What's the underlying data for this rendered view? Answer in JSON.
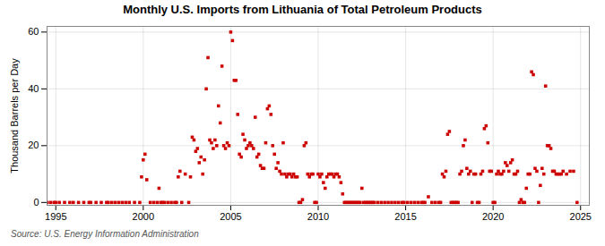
{
  "chart_data": {
    "type": "scatter",
    "title": "Monthly U.S. Imports from Lithuania of Total Petroleum Products",
    "ylabel": "Thousand Barrels per Day",
    "source": "Source: U.S. Energy Information Administration",
    "color": "#cc0000",
    "marker": "square",
    "grid": true,
    "xlim": [
      1994.5,
      2025.5
    ],
    "ylim": [
      -1,
      62
    ],
    "xticks": [
      1995,
      2000,
      2005,
      2010,
      2015,
      2020,
      2025
    ],
    "yticks": [
      0,
      20,
      40,
      60
    ],
    "x": [
      1994.5,
      1994.7,
      1994.9,
      1995.0,
      1995.2,
      1995.5,
      1995.8,
      1996.0,
      1996.3,
      1996.6,
      1996.9,
      1997.0,
      1997.3,
      1997.6,
      1997.9,
      1998.0,
      1998.2,
      1998.4,
      1998.6,
      1998.8,
      1999.0,
      1999.2,
      1999.5,
      1999.8,
      1999.9,
      2000.0,
      2000.1,
      2000.2,
      2000.4,
      2000.6,
      2000.8,
      2000.9,
      2001.0,
      2001.1,
      2001.2,
      2001.4,
      2001.6,
      2001.8,
      2001.9,
      2002.0,
      2002.1,
      2002.2,
      2002.4,
      2002.6,
      2002.7,
      2002.8,
      2002.9,
      2003.0,
      2003.1,
      2003.2,
      2003.3,
      2003.4,
      2003.5,
      2003.6,
      2003.7,
      2003.8,
      2003.9,
      2004.0,
      2004.1,
      2004.2,
      2004.3,
      2004.4,
      2004.5,
      2004.6,
      2004.7,
      2004.8,
      2004.9,
      2005.0,
      2005.1,
      2005.2,
      2005.3,
      2005.4,
      2005.5,
      2005.6,
      2005.7,
      2005.8,
      2005.9,
      2006.0,
      2006.1,
      2006.2,
      2006.3,
      2006.4,
      2006.5,
      2006.6,
      2006.7,
      2006.8,
      2006.9,
      2007.0,
      2007.1,
      2007.2,
      2007.3,
      2007.4,
      2007.5,
      2007.6,
      2007.7,
      2007.8,
      2007.9,
      2008.0,
      2008.1,
      2008.2,
      2008.3,
      2008.4,
      2008.5,
      2008.6,
      2008.7,
      2008.8,
      2008.9,
      2009.0,
      2009.1,
      2009.2,
      2009.3,
      2009.4,
      2009.5,
      2009.6,
      2009.7,
      2009.8,
      2009.9,
      2010.0,
      2010.1,
      2010.2,
      2010.3,
      2010.4,
      2010.5,
      2010.6,
      2010.7,
      2010.8,
      2010.9,
      2011.0,
      2011.1,
      2011.2,
      2011.3,
      2011.4,
      2011.5,
      2011.6,
      2011.7,
      2011.8,
      2011.9,
      2012.0,
      2012.1,
      2012.2,
      2012.3,
      2012.4,
      2012.5,
      2012.6,
      2012.7,
      2012.8,
      2012.9,
      2013.0,
      2013.1,
      2013.2,
      2013.4,
      2013.6,
      2013.8,
      2014.0,
      2014.2,
      2014.4,
      2014.6,
      2014.8,
      2014.9,
      2015.1,
      2015.3,
      2015.5,
      2015.7,
      2015.9,
      2016.0,
      2016.1,
      2016.3,
      2016.5,
      2016.7,
      2016.9,
      2017.0,
      2017.1,
      2017.2,
      2017.3,
      2017.4,
      2017.5,
      2017.6,
      2017.7,
      2017.8,
      2017.9,
      2018.0,
      2018.1,
      2018.2,
      2018.3,
      2018.4,
      2018.5,
      2018.6,
      2018.7,
      2018.8,
      2018.9,
      2019.0,
      2019.1,
      2019.2,
      2019.3,
      2019.4,
      2019.5,
      2019.6,
      2019.7,
      2019.8,
      2019.9,
      2020.0,
      2020.1,
      2020.2,
      2020.3,
      2020.4,
      2020.5,
      2020.6,
      2020.7,
      2020.8,
      2020.9,
      2021.0,
      2021.1,
      2021.2,
      2021.3,
      2021.4,
      2021.5,
      2021.6,
      2021.7,
      2021.8,
      2021.9,
      2022.0,
      2022.1,
      2022.2,
      2022.3,
      2022.4,
      2022.5,
      2022.6,
      2022.7,
      2022.8,
      2022.9,
      2023.0,
      2023.1,
      2023.2,
      2023.3,
      2023.4,
      2023.5,
      2023.6,
      2023.7,
      2023.8,
      2023.9,
      2024.0,
      2024.2,
      2024.4,
      2024.6,
      2024.8
    ],
    "values": [
      0,
      0,
      0,
      0,
      0,
      0,
      0,
      0,
      0,
      0,
      0,
      0,
      0,
      0,
      0,
      0,
      0,
      0,
      0,
      0,
      0,
      0,
      0,
      0,
      9,
      15,
      17,
      8,
      0,
      0,
      0,
      5,
      0,
      0,
      0,
      0,
      0,
      0,
      0,
      9,
      11,
      0,
      10,
      0,
      9,
      23,
      22,
      18,
      19,
      14,
      16,
      10,
      15,
      40,
      51,
      22,
      21,
      19,
      22,
      20,
      34,
      28,
      48,
      20,
      19,
      21,
      20,
      60,
      57,
      43,
      43,
      31,
      17,
      16,
      24,
      22,
      19,
      20,
      21,
      20,
      19,
      30,
      16,
      17,
      13,
      12,
      12,
      21,
      33,
      34,
      31,
      20,
      17,
      12,
      14,
      11,
      10,
      21,
      10,
      9,
      10,
      10,
      9,
      10,
      9,
      9,
      0,
      0,
      1,
      20,
      21,
      10,
      9,
      10,
      10,
      0,
      0,
      10,
      9,
      10,
      7,
      5,
      9,
      10,
      10,
      10,
      9,
      10,
      10,
      9,
      7,
      3,
      0,
      0,
      0,
      0,
      0,
      0,
      0,
      0,
      0,
      0,
      5,
      0,
      0,
      0,
      0,
      0,
      0,
      0,
      0,
      0,
      0,
      0,
      0,
      0,
      0,
      0,
      0,
      0,
      0,
      0,
      0,
      0,
      0,
      0,
      2,
      0,
      0,
      0,
      0,
      10,
      9,
      11,
      24,
      25,
      0,
      0,
      0,
      0,
      0,
      10,
      11,
      20,
      22,
      12,
      10,
      11,
      0,
      10,
      10,
      0,
      0,
      10,
      11,
      26,
      27,
      21,
      11,
      11,
      0,
      0,
      10,
      11,
      10,
      10,
      11,
      14,
      13,
      11,
      14,
      15,
      10,
      10,
      11,
      0,
      1,
      0,
      0,
      5,
      10,
      10,
      46,
      45,
      12,
      11,
      0,
      6,
      12,
      10,
      41,
      20,
      20,
      19,
      11,
      11,
      10,
      10,
      10,
      10,
      11,
      10,
      11,
      11,
      0
    ]
  }
}
